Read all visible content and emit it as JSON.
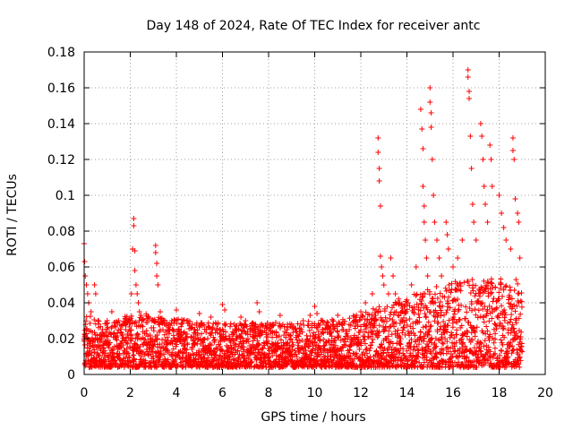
{
  "chart_data": {
    "type": "scatter",
    "title": "Day 148 of 2024, Rate Of TEC Index for receiver antc",
    "xlabel": "GPS time / hours",
    "ylabel": "ROTI / TECUs",
    "xlim": [
      0,
      20
    ],
    "ylim": [
      0,
      0.18
    ],
    "xticks": [
      0,
      2,
      4,
      6,
      8,
      10,
      12,
      14,
      16,
      18,
      20
    ],
    "yticks": [
      0,
      0.02,
      0.04,
      0.06,
      0.08,
      0.1,
      0.12,
      0.14,
      0.16,
      0.18
    ],
    "xtick_labels": [
      "0",
      "2",
      "4",
      "6",
      "8",
      "10",
      "12",
      "14",
      "16",
      "18",
      "20"
    ],
    "ytick_labels": [
      "0",
      "0.02",
      "0.04",
      "0.06",
      "0.08",
      "0.1",
      "0.12",
      "0.14",
      "0.16",
      "0.18"
    ],
    "grid": true,
    "marker": "plus",
    "series": [
      {
        "name": "ROTI",
        "color": "#ff0000",
        "points": [
          [
            0.0,
            0.073
          ],
          [
            0.02,
            0.063
          ],
          [
            0.05,
            0.055
          ],
          [
            0.1,
            0.05
          ],
          [
            0.15,
            0.045
          ],
          [
            0.2,
            0.04
          ],
          [
            0.3,
            0.035
          ],
          [
            0.45,
            0.05
          ],
          [
            0.5,
            0.045
          ],
          [
            0.6,
            0.03
          ],
          [
            0.8,
            0.025
          ],
          [
            1.0,
            0.03
          ],
          [
            1.2,
            0.035
          ],
          [
            1.5,
            0.03
          ],
          [
            1.8,
            0.025
          ],
          [
            2.05,
            0.045
          ],
          [
            2.1,
            0.07
          ],
          [
            2.15,
            0.087
          ],
          [
            2.15,
            0.083
          ],
          [
            2.2,
            0.069
          ],
          [
            2.2,
            0.058
          ],
          [
            2.25,
            0.05
          ],
          [
            2.3,
            0.045
          ],
          [
            2.35,
            0.04
          ],
          [
            2.4,
            0.035
          ],
          [
            2.5,
            0.03
          ],
          [
            3.0,
            0.03
          ],
          [
            3.1,
            0.072
          ],
          [
            3.1,
            0.068
          ],
          [
            3.15,
            0.062
          ],
          [
            3.15,
            0.055
          ],
          [
            3.2,
            0.05
          ],
          [
            3.3,
            0.035
          ],
          [
            3.5,
            0.028
          ],
          [
            3.8,
            0.03
          ],
          [
            4.0,
            0.036
          ],
          [
            4.2,
            0.028
          ],
          [
            4.5,
            0.03
          ],
          [
            4.8,
            0.025
          ],
          [
            5.0,
            0.034
          ],
          [
            5.3,
            0.025
          ],
          [
            5.5,
            0.032
          ],
          [
            5.8,
            0.028
          ],
          [
            6.0,
            0.039
          ],
          [
            6.1,
            0.036
          ],
          [
            6.5,
            0.028
          ],
          [
            6.8,
            0.032
          ],
          [
            7.0,
            0.03
          ],
          [
            7.2,
            0.025
          ],
          [
            7.5,
            0.04
          ],
          [
            7.6,
            0.035
          ],
          [
            8.0,
            0.025
          ],
          [
            8.5,
            0.033
          ],
          [
            8.8,
            0.025
          ],
          [
            9.0,
            0.028
          ],
          [
            9.5,
            0.03
          ],
          [
            9.8,
            0.033
          ],
          [
            10.0,
            0.038
          ],
          [
            10.1,
            0.034
          ],
          [
            10.5,
            0.028
          ],
          [
            10.8,
            0.025
          ],
          [
            11.0,
            0.033
          ],
          [
            11.2,
            0.028
          ],
          [
            11.5,
            0.025
          ],
          [
            11.8,
            0.03
          ],
          [
            12.0,
            0.035
          ],
          [
            12.2,
            0.04
          ],
          [
            12.5,
            0.045
          ],
          [
            12.75,
            0.132
          ],
          [
            12.75,
            0.124
          ],
          [
            12.8,
            0.115
          ],
          [
            12.8,
            0.108
          ],
          [
            12.85,
            0.094
          ],
          [
            12.85,
            0.066
          ],
          [
            12.9,
            0.06
          ],
          [
            12.95,
            0.055
          ],
          [
            13.0,
            0.05
          ],
          [
            13.2,
            0.045
          ],
          [
            13.3,
            0.065
          ],
          [
            13.4,
            0.055
          ],
          [
            13.5,
            0.045
          ],
          [
            13.6,
            0.04
          ],
          [
            13.8,
            0.035
          ],
          [
            14.0,
            0.04
          ],
          [
            14.2,
            0.05
          ],
          [
            14.4,
            0.06
          ],
          [
            14.6,
            0.148
          ],
          [
            14.65,
            0.137
          ],
          [
            14.7,
            0.126
          ],
          [
            14.7,
            0.105
          ],
          [
            14.75,
            0.094
          ],
          [
            14.75,
            0.085
          ],
          [
            14.8,
            0.075
          ],
          [
            14.85,
            0.065
          ],
          [
            14.9,
            0.055
          ],
          [
            15.0,
            0.16
          ],
          [
            15.0,
            0.152
          ],
          [
            15.05,
            0.146
          ],
          [
            15.05,
            0.138
          ],
          [
            15.1,
            0.12
          ],
          [
            15.15,
            0.1
          ],
          [
            15.2,
            0.085
          ],
          [
            15.3,
            0.075
          ],
          [
            15.4,
            0.065
          ],
          [
            15.5,
            0.055
          ],
          [
            15.7,
            0.085
          ],
          [
            15.75,
            0.078
          ],
          [
            15.8,
            0.07
          ],
          [
            16.0,
            0.06
          ],
          [
            16.2,
            0.065
          ],
          [
            16.4,
            0.075
          ],
          [
            16.65,
            0.17
          ],
          [
            16.65,
            0.166
          ],
          [
            16.7,
            0.158
          ],
          [
            16.7,
            0.154
          ],
          [
            16.75,
            0.133
          ],
          [
            16.8,
            0.115
          ],
          [
            16.85,
            0.095
          ],
          [
            16.9,
            0.085
          ],
          [
            17.0,
            0.075
          ],
          [
            17.2,
            0.14
          ],
          [
            17.25,
            0.133
          ],
          [
            17.3,
            0.12
          ],
          [
            17.35,
            0.105
          ],
          [
            17.4,
            0.095
          ],
          [
            17.5,
            0.085
          ],
          [
            17.6,
            0.128
          ],
          [
            17.65,
            0.12
          ],
          [
            17.7,
            0.105
          ],
          [
            18.0,
            0.1
          ],
          [
            18.1,
            0.09
          ],
          [
            18.2,
            0.082
          ],
          [
            18.3,
            0.075
          ],
          [
            18.5,
            0.07
          ],
          [
            18.6,
            0.125
          ],
          [
            18.6,
            0.132
          ],
          [
            18.65,
            0.12
          ],
          [
            18.7,
            0.098
          ],
          [
            18.8,
            0.09
          ],
          [
            18.85,
            0.085
          ],
          [
            18.9,
            0.065
          ]
        ],
        "baseline_band": [
          [
            0.0,
            0.03
          ],
          [
            1.0,
            0.025
          ],
          [
            2.0,
            0.03
          ],
          [
            3.0,
            0.03
          ],
          [
            4.0,
            0.027
          ],
          [
            5.0,
            0.026
          ],
          [
            6.0,
            0.025
          ],
          [
            7.0,
            0.025
          ],
          [
            8.0,
            0.025
          ],
          [
            9.0,
            0.025
          ],
          [
            10.0,
            0.026
          ],
          [
            11.0,
            0.027
          ],
          [
            12.0,
            0.03
          ],
          [
            13.0,
            0.035
          ],
          [
            14.0,
            0.04
          ],
          [
            15.0,
            0.045
          ],
          [
            16.0,
            0.048
          ],
          [
            17.0,
            0.05
          ],
          [
            18.0,
            0.05
          ],
          [
            19.0,
            0.05
          ]
        ]
      }
    ]
  }
}
